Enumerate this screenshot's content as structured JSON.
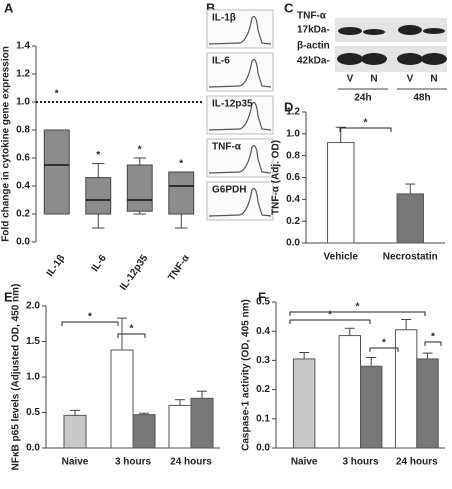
{
  "chart_data": [
    {
      "type": "box",
      "panel_label": "A",
      "ylabel": "Fold change in cytokine gene expression",
      "categories": [
        "IL-1β",
        "IL-6",
        "IL-12p35",
        "TNF-α"
      ],
      "min": [
        0.2,
        0.1,
        0.2,
        0.1
      ],
      "q1": [
        0.2,
        0.2,
        0.22,
        0.2
      ],
      "median": [
        0.55,
        0.3,
        0.3,
        0.4
      ],
      "q3": [
        0.8,
        0.46,
        0.55,
        0.5
      ],
      "max": [
        0.8,
        0.56,
        0.6,
        0.5
      ],
      "color": "#8c8c8c",
      "ylim": [
        0,
        1.4
      ],
      "yticks": [
        {
          "value": 0,
          "label": "0.0"
        },
        0.2,
        0.4,
        0.6,
        0.8,
        {
          "value": 1,
          "label": "1.0"
        },
        1.2,
        1.4
      ],
      "reference_line": {
        "value": 1,
        "label": "*"
      },
      "significance": [
        null,
        "*",
        "*",
        "*"
      ]
    },
    {
      "type": "bar",
      "panel_label": "D",
      "ylabel": "TNF-α (Adj. OD)",
      "categories": [
        "Vehicle",
        "Necrostatin"
      ],
      "series": [
        {
          "color": "#ffffff",
          "values": [
            0.92,
            null
          ],
          "errors": [
            0.14,
            null
          ]
        },
        {
          "color": "#777777",
          "values": [
            null,
            0.45
          ],
          "errors": [
            null,
            0.09
          ]
        }
      ],
      "ylim": [
        0,
        1.2
      ],
      "yticks": [
        {
          "value": 0,
          "label": "0.0"
        },
        0.2,
        0.4,
        0.6,
        0.8,
        {
          "value": 1,
          "label": "1.0"
        },
        1.2
      ],
      "annotations": [
        "*"
      ]
    },
    {
      "type": "bar",
      "panel_label": "E",
      "ylabel": "NFκB p65 levels (Adjusted OD, 450 nm)",
      "categories": [
        "Naive",
        "3 hours",
        "24 hours"
      ],
      "series": [
        {
          "color": "#c8c8c8",
          "values": [
            0.46,
            null,
            null
          ],
          "errors": [
            0.07,
            null,
            null
          ]
        },
        {
          "color": "#ffffff",
          "values": [
            null,
            1.38,
            0.6
          ],
          "errors": [
            null,
            0.45,
            0.08
          ]
        },
        {
          "color": "#777777",
          "values": [
            null,
            0.47,
            0.7
          ],
          "errors": [
            null,
            0.02,
            0.1
          ]
        }
      ],
      "ylim": [
        0,
        2
      ],
      "yticks": [
        {
          "value": 0,
          "label": "0.0"
        },
        0.5,
        {
          "value": 1,
          "label": "1.0"
        },
        1.5,
        {
          "value": 2,
          "label": "2.0"
        }
      ],
      "annotations": [
        "*",
        "*"
      ]
    },
    {
      "type": "bar",
      "panel_label": "F",
      "ylabel": "Caspase-1 activity (OD, 405 nm)",
      "categories": [
        "Naive",
        "3 hours",
        "24 hours"
      ],
      "series": [
        {
          "color": "#c8c8c8",
          "values": [
            0.305,
            null,
            null
          ],
          "errors": [
            0.022,
            null,
            null
          ]
        },
        {
          "color": "#ffffff",
          "values": [
            null,
            0.385,
            0.405
          ],
          "errors": [
            null,
            0.025,
            0.035
          ]
        },
        {
          "color": "#777777",
          "values": [
            null,
            0.28,
            0.305
          ],
          "errors": [
            null,
            0.03,
            0.02
          ]
        }
      ],
      "ylim": [
        0,
        0.5
      ],
      "yticks": [
        {
          "value": 0,
          "label": "0.0"
        },
        0.1,
        0.2,
        0.3,
        0.4,
        0.5
      ],
      "annotations": [
        "*",
        "*",
        "*",
        "*"
      ]
    }
  ],
  "gel_panel": {
    "panel_label": "B",
    "labels": [
      "IL-1β",
      "IL-6",
      "IL-12p35",
      "TNF-α",
      "G6PDH"
    ]
  },
  "blot_panel": {
    "panel_label": "C",
    "targets": [
      {
        "name": "TNF-α",
        "size": "17kDa-"
      },
      {
        "name": "β-actin",
        "size": "42kDa-"
      }
    ],
    "lanes": [
      "V",
      "N",
      "V",
      "N"
    ],
    "timepoints": [
      "24h",
      "48h"
    ]
  }
}
